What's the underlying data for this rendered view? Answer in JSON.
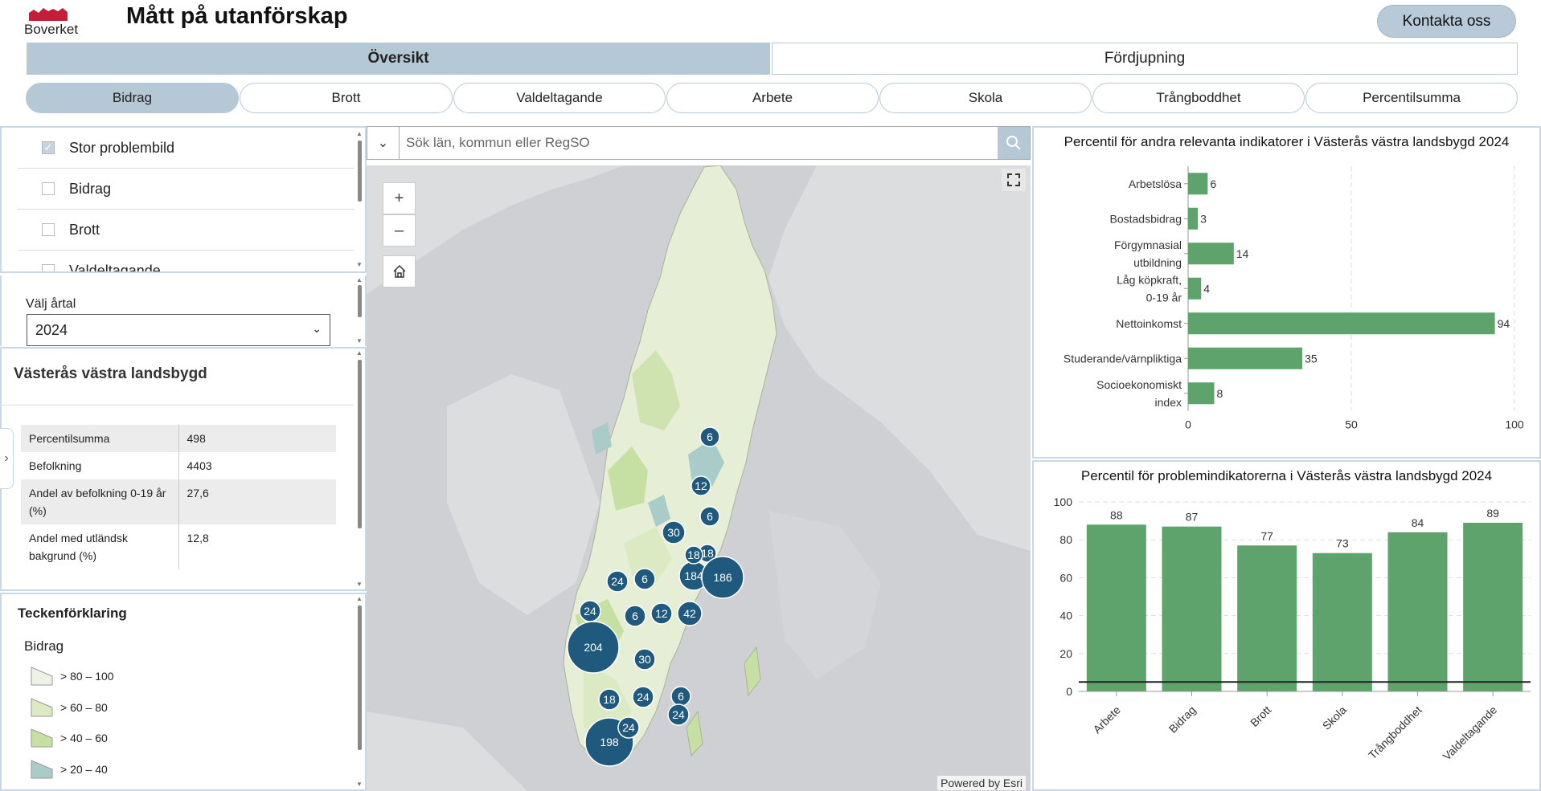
{
  "header": {
    "logo_text": "Boverket",
    "title": "Mått på utanförskap",
    "contact_label": "Kontakta oss"
  },
  "main_tabs": [
    {
      "label": "Översikt",
      "active": true
    },
    {
      "label": "Fördjupning",
      "active": false
    }
  ],
  "sub_tabs": [
    {
      "label": "Bidrag",
      "active": true
    },
    {
      "label": "Brott",
      "active": false
    },
    {
      "label": "Valdeltagande",
      "active": false
    },
    {
      "label": "Arbete",
      "active": false
    },
    {
      "label": "Skola",
      "active": false
    },
    {
      "label": "Trångboddhet",
      "active": false
    },
    {
      "label": "Percentilsumma",
      "active": false
    }
  ],
  "filters": [
    {
      "label": "Stor problembild",
      "checked": true
    },
    {
      "label": "Bidrag",
      "checked": false
    },
    {
      "label": "Brott",
      "checked": false
    },
    {
      "label": "Valdeltagande",
      "checked": false
    }
  ],
  "year": {
    "label": "Välj årtal",
    "value": "2024"
  },
  "area": {
    "title": "Västerås västra landsbygd",
    "rows": [
      {
        "label": "Percentilsumma",
        "value": "498"
      },
      {
        "label": "Befolkning",
        "value": "4403"
      },
      {
        "label": "Andel av befolkning 0-19 år (%)",
        "value": "27,6"
      },
      {
        "label": "Andel med utländsk bakgrund (%)",
        "value": "12,8"
      }
    ]
  },
  "legend": {
    "title": "Teckenförklaring",
    "subtitle": "Bidrag",
    "items": [
      {
        "label": "> 80 – 100",
        "color": "#eef2e6"
      },
      {
        "label": "> 60 – 80",
        "color": "#dceac4"
      },
      {
        "label": "> 40 – 60",
        "color": "#c5e0a2"
      },
      {
        "label": "> 20 – 40",
        "color": "#a9ccc8"
      }
    ]
  },
  "search": {
    "placeholder": "Sök län, kommun eller RegSO"
  },
  "map": {
    "powered_by": "Powered by Esri",
    "clusters": [
      "6",
      "12",
      "6",
      "30",
      "18",
      "184",
      "186",
      "18",
      "6",
      "24",
      "24",
      "6",
      "12",
      "42",
      "204",
      "30",
      "18",
      "24",
      "6",
      "24",
      "198",
      "24"
    ]
  },
  "chart_data": [
    {
      "type": "bar",
      "orientation": "horizontal",
      "title": "Percentil för andra relevanta indikatorer i Västerås västra landsbygd 2024",
      "categories": [
        "Arbetslösa",
        "Bostadsbidrag",
        "Förgymnasial utbildning",
        "Låg köpkraft, 0-19 år",
        "Nettoinkomst",
        "Studerande/värnpliktiga",
        "Socioekonomiskt index"
      ],
      "category_lines": [
        [
          "Arbetslösa"
        ],
        [
          "Bostadsbidrag"
        ],
        [
          "Förgymnasial",
          "utbildning"
        ],
        [
          "Låg köpkraft,",
          "0-19 år"
        ],
        [
          "Nettoinkomst"
        ],
        [
          "Studerande/värnpliktiga"
        ],
        [
          "Socioekonomiskt",
          "index"
        ]
      ],
      "values": [
        6,
        3,
        14,
        4,
        94,
        35,
        8
      ],
      "xlim": [
        0,
        100
      ],
      "xticks": [
        0,
        50,
        100
      ],
      "color": "#5da36b"
    },
    {
      "type": "bar",
      "title": "Percentil för problemindikatorerna i Västerås västra landsbygd 2024",
      "categories": [
        "Arbete",
        "Bidrag",
        "Brott",
        "Skola",
        "Trångboddhet",
        "Valdeltagande"
      ],
      "values": [
        88,
        87,
        77,
        73,
        84,
        89
      ],
      "ylim": [
        0,
        100
      ],
      "yticks": [
        0,
        20,
        40,
        60,
        80,
        100
      ],
      "reference_line": 5,
      "color": "#5da36b"
    }
  ]
}
